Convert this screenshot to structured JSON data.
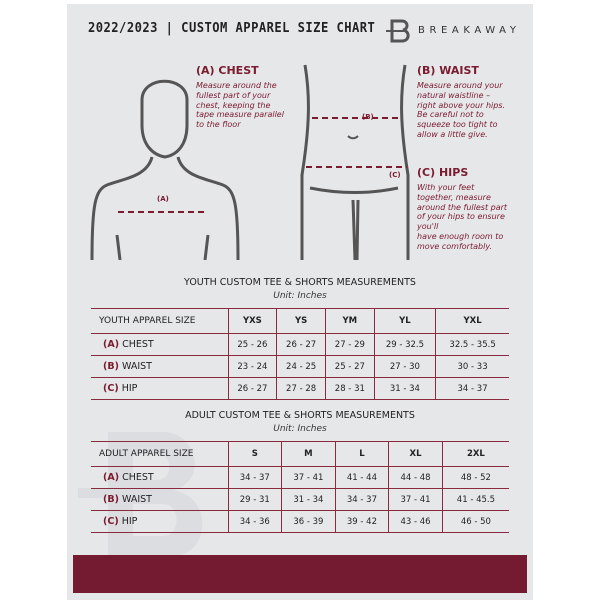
{
  "header": {
    "title": "2022/2023 | CUSTOM APPAREL SIZE CHART",
    "brand": "BREAKAWAY"
  },
  "measures": {
    "chest": {
      "title": "(A) CHEST",
      "desc": [
        "Measure around the",
        "fullest part of your",
        "chest, keeping the",
        "tape measure parallel",
        "to the floor"
      ],
      "marker": "(A)"
    },
    "waist": {
      "title": "(B) WAIST",
      "desc": [
        "Measure around your",
        "natural waistline –",
        "right above your hips.",
        "Be careful not to",
        "squeeze too tight to",
        "allow a little give."
      ],
      "marker": "(B)"
    },
    "hips": {
      "title": "(C) HIPS",
      "desc": [
        "With your feet",
        "together, measure",
        "around the fullest part",
        "of your hips to ensure",
        "you'll",
        "have enough room to",
        "move comfortably."
      ],
      "marker": "(C)"
    }
  },
  "youth": {
    "title": "YOUTH CUSTOM TEE & SHORTS MEASUREMENTS",
    "unit": "Unit: Inches",
    "header": "YOUTH APPAREL SIZE",
    "sizes": [
      "YXS",
      "YS",
      "YM",
      "YL",
      "YXL"
    ],
    "rows": [
      {
        "letter": "(A)",
        "name": "CHEST",
        "values": [
          "25 - 26",
          "26 - 27",
          "27 - 29",
          "29 - 32.5",
          "32.5 - 35.5"
        ]
      },
      {
        "letter": "(B)",
        "name": "WAIST",
        "values": [
          "23 - 24",
          "24 - 25",
          "25 - 27",
          "27 - 30",
          "30 - 33"
        ]
      },
      {
        "letter": "(C)",
        "name": "HIP",
        "values": [
          "26 - 27",
          "27 - 28",
          "28 - 31",
          "31 - 34",
          "34 - 37"
        ]
      }
    ]
  },
  "adult": {
    "title": "ADULT CUSTOM TEE & SHORTS MEASUREMENTS",
    "unit": "Unit: Inches",
    "header": "ADULT APPAREL SIZE",
    "sizes": [
      "S",
      "M",
      "L",
      "XL",
      "2XL"
    ],
    "rows": [
      {
        "letter": "(A)",
        "name": "CHEST",
        "values": [
          "34 - 37",
          "37 - 41",
          "41 - 44",
          "44 - 48",
          "48 - 52"
        ]
      },
      {
        "letter": "(B)",
        "name": "WAIST",
        "values": [
          "29 - 31",
          "31 - 34",
          "34 - 37",
          "37 - 41",
          "41 - 45.5"
        ]
      },
      {
        "letter": "(C)",
        "name": "HIP",
        "values": [
          "34 - 36",
          "36 - 39",
          "39 - 42",
          "43 - 46",
          "46 - 50"
        ]
      }
    ]
  },
  "colors": {
    "accent": "#741b31",
    "panel": "#e6e7e9"
  }
}
